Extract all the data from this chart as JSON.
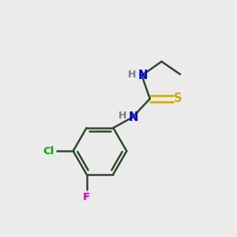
{
  "background_color": "#ebebeb",
  "bond_color": "#2d4a2d",
  "atom_colors": {
    "N": "#0000ee",
    "H": "#7a7a7a",
    "S": "#ccaa00",
    "Cl": "#00aa00",
    "F": "#cc00cc",
    "C": "#2d4a2d"
  },
  "figsize": [
    3.0,
    3.0
  ],
  "dpi": 100
}
